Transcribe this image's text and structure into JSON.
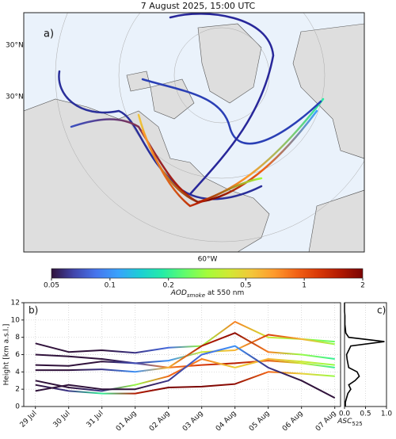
{
  "title": "7 August 2025, 15:00 UTC",
  "map": {
    "panel_label": "a)",
    "lat_labels": [
      "30°N",
      "30°N"
    ],
    "lon_label": "60°W"
  },
  "colorbar": {
    "lim": [
      0.05,
      2
    ],
    "log": true,
    "ticks": [
      0.05,
      0.1,
      0.2,
      0.5,
      1,
      2
    ],
    "label": {
      "main": "AOD",
      "sub": "smoke",
      "rest": " at 550 nm"
    },
    "colormap": [
      "#30123b",
      "#4145ab",
      "#4675ed",
      "#39a2fc",
      "#1bcfd4",
      "#24eca6",
      "#61fc6c",
      "#a4fc3b",
      "#d1e834",
      "#f3c63a",
      "#fe9b2d",
      "#f36315",
      "#d93806",
      "#b11901",
      "#7a0402"
    ]
  },
  "chart_data": [
    {
      "type": "line",
      "panel_label": "b)",
      "y_label": "Height [km a.s.l.]",
      "categories": [
        "29 Jul",
        "30 Jul",
        "31 Jul",
        "01 Aug",
        "02 Aug",
        "03 Aug",
        "04 Aug",
        "05 Aug",
        "06 Aug",
        "07 Aug"
      ],
      "ylim": [
        0,
        12
      ],
      "yticks": [
        0,
        2,
        4,
        6,
        8,
        10,
        12
      ],
      "grid": true,
      "color_by": "aod",
      "series": [
        {
          "values": [
            7.3,
            6.3,
            6.5,
            6.2,
            6.8,
            7.0,
            9.8,
            8.0,
            7.8,
            7.5
          ],
          "aod": [
            0.05,
            0.05,
            0.05,
            0.06,
            0.08,
            0.3,
            0.8,
            0.4,
            0.3,
            0.25
          ]
        },
        {
          "values": [
            6.0,
            5.8,
            5.5,
            5.0,
            5.3,
            6.3,
            6.5,
            8.3,
            7.8,
            7.2
          ],
          "aod": [
            0.05,
            0.05,
            0.05,
            0.06,
            0.1,
            0.4,
            0.6,
            1.2,
            0.6,
            0.3
          ]
        },
        {
          "values": [
            4.8,
            4.7,
            5.2,
            5.0,
            4.5,
            4.8,
            5.0,
            5.3,
            5.0,
            4.5
          ],
          "aod": [
            0.05,
            0.05,
            0.05,
            0.07,
            0.8,
            1.2,
            1.5,
            1.0,
            0.4,
            0.2
          ]
        },
        {
          "values": [
            4.2,
            4.2,
            4.3,
            4.0,
            4.5,
            7.0,
            8.5,
            6.3,
            6.0,
            5.5
          ],
          "aod": [
            0.05,
            0.05,
            0.06,
            0.1,
            0.6,
            1.5,
            1.8,
            0.8,
            0.3,
            0.2
          ]
        },
        {
          "values": [
            3.0,
            2.2,
            1.8,
            2.5,
            3.5,
            5.5,
            4.5,
            5.5,
            5.2,
            4.8
          ],
          "aod": [
            0.05,
            0.05,
            0.06,
            0.3,
            0.9,
            0.8,
            0.5,
            0.6,
            0.4,
            0.3
          ]
        },
        {
          "values": [
            2.5,
            1.8,
            1.5,
            1.5,
            2.2,
            2.3,
            2.6,
            4.0,
            3.8,
            3.5
          ],
          "aod": [
            0.05,
            0.06,
            0.2,
            1.5,
            2,
            2,
            1.8,
            0.9,
            0.5,
            0.3
          ]
        },
        {
          "values": [
            1.8,
            2.5,
            2.0,
            2.0,
            3.0,
            6.0,
            7.0,
            4.5,
            3.0,
            1.0
          ],
          "aod": [
            0.05,
            0.05,
            0.05,
            0.05,
            0.06,
            0.08,
            0.1,
            0.06,
            0.05,
            0.05
          ]
        }
      ]
    },
    {
      "type": "profile",
      "panel_label": "c)",
      "x_label": {
        "main": "ASC",
        "sub": "525"
      },
      "xlim": [
        0,
        1
      ],
      "xticks": [
        {
          "value": 0,
          "label": "0.0"
        },
        {
          "value": 0.5,
          "label": "0.5"
        },
        {
          "value": 1,
          "label": "1.0"
        }
      ],
      "ylim": [
        0,
        12
      ],
      "color": "#000000",
      "y": [
        0,
        0.5,
        1,
        1.5,
        2,
        2.5,
        3,
        3.5,
        4,
        4.5,
        5,
        5.5,
        6,
        6.5,
        7,
        7.5,
        8,
        8.5,
        9,
        9.5,
        10,
        10.5,
        11,
        11.5,
        12
      ],
      "values": [
        0.02,
        0.02,
        0.05,
        0.08,
        0.15,
        0.1,
        0.25,
        0.35,
        0.3,
        0.1,
        0.08,
        0.06,
        0.05,
        0.1,
        0.15,
        0.95,
        0.1,
        0.03,
        0.02,
        0.01,
        0.01,
        0.01,
        0,
        0,
        0
      ]
    }
  ]
}
